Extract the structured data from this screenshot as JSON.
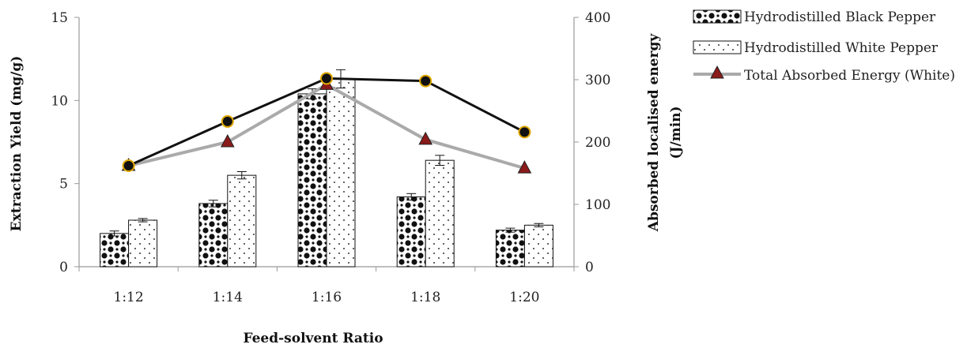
{
  "chart_data": {
    "type": "bar",
    "categories": [
      "1:12",
      "1:14",
      "1:16",
      "1:18",
      "1:20"
    ],
    "xlabel": "Feed-solvent Ratio",
    "ylabel": "Extraction Yield (mg/g)",
    "ylabel_right_line1": "Absorbed localised energy",
    "ylabel_right_line2": "(J/min)",
    "ylim": [
      0,
      15
    ],
    "yticks": [
      0,
      5,
      10,
      15
    ],
    "ylim_right": [
      0,
      400
    ],
    "yticks_right": [
      0,
      100,
      200,
      300,
      400
    ],
    "legend_position": "top-right, outside plot",
    "series": [
      {
        "name": "Hydrodistilled Black Pepper",
        "kind": "bar",
        "axis": "left",
        "pattern": "checker-dots",
        "values": [
          2.0,
          3.8,
          10.4,
          4.2,
          2.2
        ],
        "errors": [
          0.15,
          0.2,
          0.3,
          0.2,
          0.12
        ]
      },
      {
        "name": "Hydrodistilled White Pepper",
        "kind": "bar",
        "axis": "left",
        "pattern": "sparse-dots",
        "values": [
          2.8,
          5.5,
          11.3,
          6.4,
          2.5
        ],
        "errors": [
          0.1,
          0.22,
          0.55,
          0.3,
          0.1
        ]
      },
      {
        "name": "Total Absorbed Energy (White)",
        "kind": "line",
        "axis": "right",
        "color": "#aaaaaa",
        "marker": "triangle",
        "marker_color": "#8b1a1a",
        "values": [
          162,
          200,
          292,
          204,
          158
        ]
      },
      {
        "kind": "line",
        "axis": "right",
        "color": "#111111",
        "marker": "circle",
        "marker_color": "#111111",
        "marker_edge": "#e0a800",
        "values": [
          162,
          233,
          302,
          298,
          216
        ]
      }
    ]
  }
}
